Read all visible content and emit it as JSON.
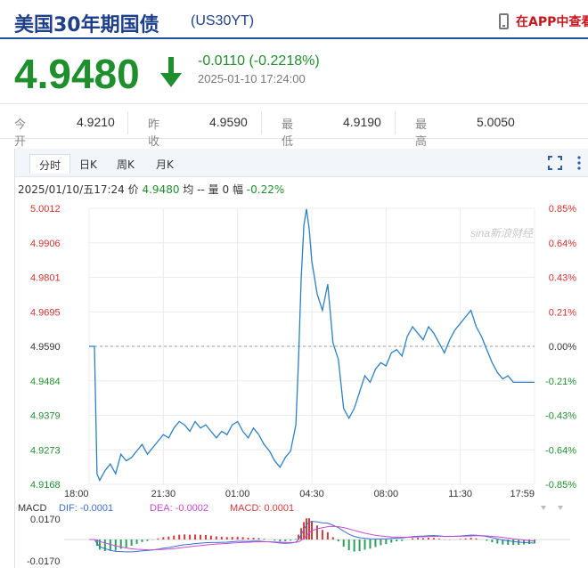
{
  "header": {
    "title": "美国30年期国债",
    "symbol": "(US30YT)",
    "app_link": "在APP中查看"
  },
  "quote": {
    "price": "4.9480",
    "change": "-0.0110 (-0.2218%)",
    "timestamp": "2025-01-10 17:24:00",
    "direction": "down",
    "color": "#1f8f2e"
  },
  "stats": [
    {
      "label": "今开",
      "value": "4.9210"
    },
    {
      "label": "昨收",
      "value": "4.9590"
    },
    {
      "label": "最低",
      "value": "4.9190"
    },
    {
      "label": "最高",
      "value": "5.0050"
    }
  ],
  "tabs": [
    {
      "label": "分时",
      "active": true
    },
    {
      "label": "日K",
      "active": false
    },
    {
      "label": "周K",
      "active": false
    },
    {
      "label": "月K",
      "active": false
    }
  ],
  "info": {
    "date": "2025/01/10/五17:24",
    "price_label": "价",
    "price": "4.9480",
    "avg_label": "均",
    "avg": "--",
    "vol_label": "量",
    "vol": "0",
    "pct_label": "幅",
    "pct": "-0.22%"
  },
  "watermark": "sina新浪财经",
  "macd": {
    "label": "MACD",
    "dif": "DIF: -0.0001",
    "dea": "DEA: -0.0002",
    "macd": "MACD: 0.0001",
    "top": "0.0170",
    "bottom": "-0.0170",
    "colors": {
      "dif": "#3b6fd3",
      "dea": "#c74bd0",
      "macd": "#d23b3b",
      "neg": "#2aa15a"
    }
  },
  "chart_data": {
    "type": "line",
    "prev_close": 4.959,
    "ylim": [
      4.9168,
      5.0012
    ],
    "y_ticks_left": [
      "5.0012",
      "4.9906",
      "4.9801",
      "4.9695",
      "4.9590",
      "4.9484",
      "4.9379",
      "4.9273",
      "4.9168"
    ],
    "y_ticks_right": [
      "0.85%",
      "0.64%",
      "0.43%",
      "0.21%",
      "0.00%",
      "-0.21%",
      "-0.43%",
      "-0.64%",
      "-0.85%"
    ],
    "x_ticks": [
      "18:00",
      "21:30",
      "01:00",
      "04:30",
      "08:00",
      "11:30",
      "17:59"
    ],
    "x": [
      0,
      1,
      2,
      3,
      4,
      6,
      8,
      10,
      12,
      14,
      16,
      18,
      20,
      22,
      24,
      26,
      28,
      30,
      32,
      34,
      36,
      38,
      40,
      42,
      44,
      46,
      48,
      50,
      52,
      54,
      56,
      58,
      60,
      62,
      64,
      66,
      68,
      70,
      72,
      74,
      76,
      78,
      79,
      80,
      81,
      82,
      83,
      84,
      86,
      88,
      90,
      92,
      94,
      96,
      98,
      100,
      102,
      104,
      106,
      108,
      110,
      112,
      114,
      116,
      118,
      120,
      122,
      124,
      126,
      128,
      130,
      132,
      134,
      136,
      138,
      140,
      142,
      144,
      146,
      148,
      150,
      152,
      154,
      156,
      158,
      160,
      162,
      164,
      166,
      168
    ],
    "values": [
      4.959,
      4.959,
      4.959,
      4.92,
      4.918,
      4.921,
      4.923,
      4.92,
      4.926,
      4.924,
      4.925,
      4.927,
      4.929,
      4.926,
      4.928,
      4.93,
      4.932,
      4.931,
      4.934,
      4.936,
      4.935,
      4.933,
      4.936,
      4.934,
      4.935,
      4.933,
      4.931,
      4.933,
      4.932,
      4.935,
      4.936,
      4.933,
      4.931,
      4.934,
      4.932,
      4.929,
      4.927,
      4.924,
      4.922,
      4.925,
      4.927,
      4.935,
      4.955,
      4.98,
      4.996,
      5.001,
      4.995,
      4.985,
      4.975,
      4.97,
      4.978,
      4.96,
      4.955,
      4.94,
      4.937,
      4.94,
      4.945,
      4.95,
      4.948,
      4.952,
      4.954,
      4.953,
      4.957,
      4.958,
      4.956,
      4.962,
      4.965,
      4.963,
      4.961,
      4.965,
      4.963,
      4.96,
      4.957,
      4.961,
      4.964,
      4.966,
      4.968,
      4.97,
      4.965,
      4.962,
      4.958,
      4.954,
      4.951,
      4.949,
      4.95,
      4.948,
      4.948,
      4.948,
      4.948,
      4.948
    ]
  }
}
